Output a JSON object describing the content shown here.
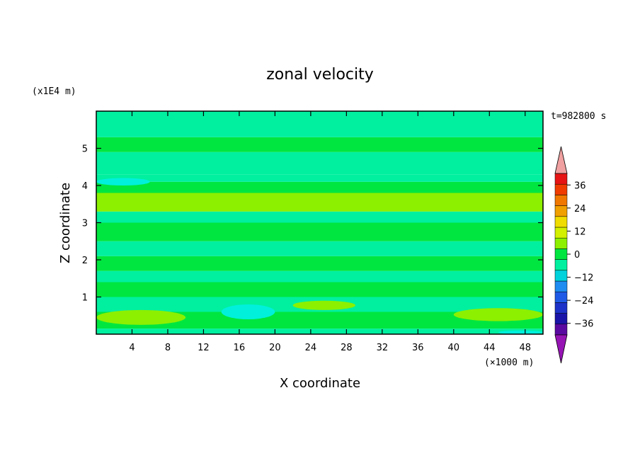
{
  "chart_data": {
    "type": "heatmap",
    "title": "zonal velocity",
    "xlabel": "X coordinate",
    "ylabel": "Z coordinate",
    "x_unit": "(×1000 m)",
    "y_unit": "(x1E4 m)",
    "time_label": "t=982800 s",
    "xlim": [
      0,
      50
    ],
    "ylim": [
      0,
      6
    ],
    "x_ticks": [
      4,
      8,
      12,
      16,
      20,
      24,
      28,
      32,
      36,
      40,
      44,
      48
    ],
    "y_ticks": [
      1,
      2,
      3,
      4,
      5
    ],
    "colorbar": {
      "min": -42,
      "max": 42,
      "step": 6,
      "tick_values": [
        -36,
        -24,
        -12,
        0,
        12,
        24,
        36
      ],
      "tick_labels": [
        "−36",
        "−24",
        "−12",
        "0",
        "12",
        "24",
        "36"
      ],
      "colors": [
        "#5a0aa0",
        "#1a14a8",
        "#1c32c8",
        "#1f5ae6",
        "#1e8cf0",
        "#00d2dc",
        "#00f0a0",
        "#00e640",
        "#8cf000",
        "#d2f000",
        "#f0dc00",
        "#f0a000",
        "#f07800",
        "#f03c00",
        "#e61414"
      ],
      "under_color": "#9614b4",
      "over_color": "#f0a0a0"
    },
    "bands": [
      {
        "z0": 0.0,
        "z1": 0.15,
        "level": 0,
        "value": -4
      },
      {
        "z0": 0.15,
        "z1": 0.6,
        "level": 1,
        "value": 2
      },
      {
        "z0": 0.6,
        "z1": 1.0,
        "level": 0,
        "value": -2
      },
      {
        "z0": 1.0,
        "z1": 1.4,
        "level": 1,
        "value": 3
      },
      {
        "z0": 1.4,
        "z1": 1.7,
        "level": 0,
        "value": -2
      },
      {
        "z0": 1.7,
        "z1": 2.1,
        "level": 1,
        "value": 2
      },
      {
        "z0": 2.1,
        "z1": 2.5,
        "level": 0,
        "value": -1
      },
      {
        "z0": 2.5,
        "z1": 3.0,
        "level": 1,
        "value": 2
      },
      {
        "z0": 3.0,
        "z1": 3.3,
        "level": 0,
        "value": -1
      },
      {
        "z0": 3.3,
        "z1": 3.8,
        "level": 2,
        "value": 7
      },
      {
        "z0": 3.8,
        "z1": 4.1,
        "level": 1,
        "value": 2
      },
      {
        "z0": 4.1,
        "z1": 4.3,
        "level": 0,
        "value": -3
      },
      {
        "z0": 4.3,
        "z1": 4.9,
        "level": 0,
        "value": -1
      },
      {
        "z0": 4.9,
        "z1": 5.3,
        "level": 1,
        "value": 1
      },
      {
        "z0": 5.3,
        "z1": 6.0,
        "level": 0,
        "value": -1
      }
    ],
    "patches": [
      {
        "x": [
          0,
          10
        ],
        "z": [
          0.25,
          0.65
        ],
        "level": 2
      },
      {
        "x": [
          22,
          29
        ],
        "z": [
          0.65,
          0.9
        ],
        "level": 2
      },
      {
        "x": [
          40,
          50
        ],
        "z": [
          0.35,
          0.7
        ],
        "level": 2
      },
      {
        "x": [
          30,
          50
        ],
        "z": [
          3.35,
          3.7
        ],
        "level": 2
      },
      {
        "x": [
          0,
          16
        ],
        "z": [
          3.45,
          3.8
        ],
        "level": 2
      },
      {
        "x": [
          14,
          20
        ],
        "z": [
          0.4,
          0.8
        ],
        "level": -1
      },
      {
        "x": [
          0,
          6
        ],
        "z": [
          4.0,
          4.2
        ],
        "level": -1
      },
      {
        "x": [
          45,
          50
        ],
        "z": [
          0.0,
          0.1
        ],
        "level": -1
      }
    ],
    "levels": {
      "-1": "#00f0dc",
      "0": "#00f0a0",
      "1": "#00e640",
      "2": "#8cf000"
    }
  }
}
